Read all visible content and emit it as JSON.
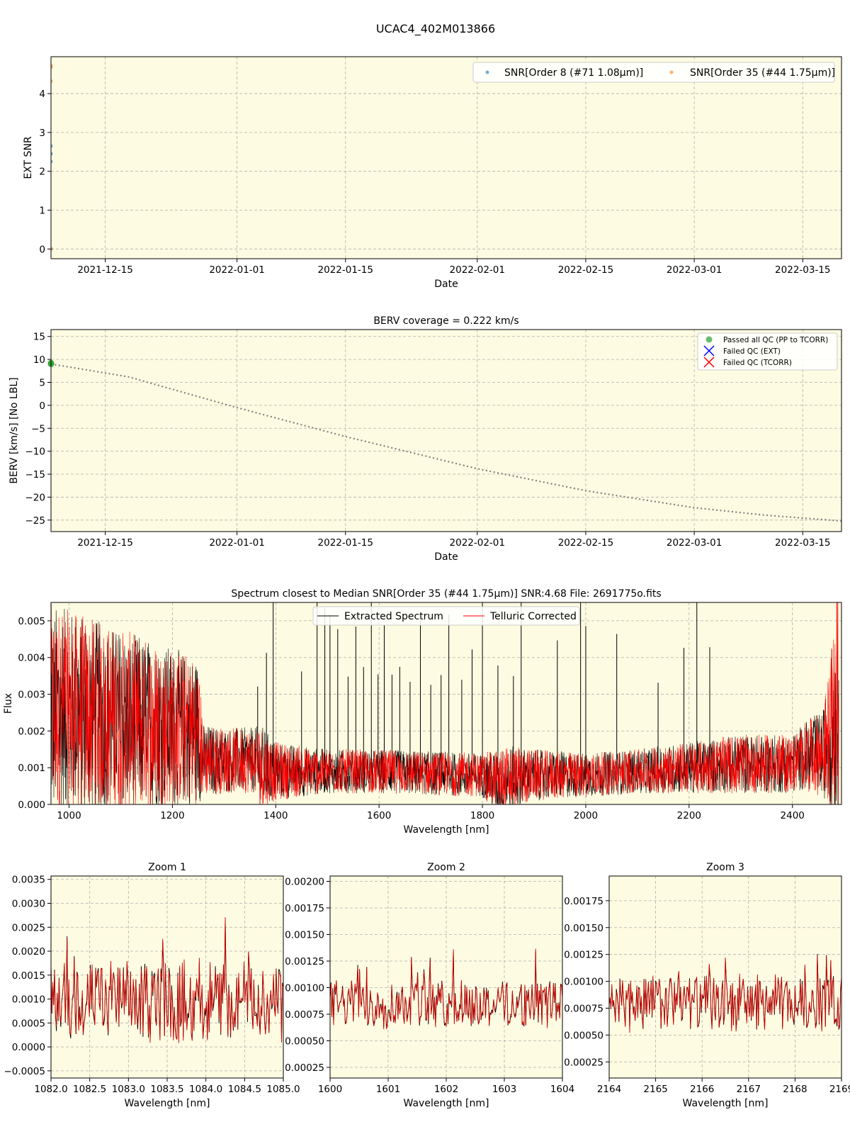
{
  "figure_title": "UCAC4_402M013866",
  "colors": {
    "panel_bg": "#fdfbe1",
    "snr_order8": "#1f77b4",
    "snr_order35": "#ff7f0e",
    "berv_line": "#808080",
    "passed": "#2ca02c",
    "failed_ext": "#0000ff",
    "failed_tcorr": "#ff0000",
    "extracted": "#000000",
    "telluric": "#ff0000",
    "grid": "#b0b0b0"
  },
  "chart_data": [
    {
      "id": "snr",
      "type": "scatter",
      "title": "",
      "xlabel": "Date",
      "ylabel": "EXT SNR",
      "x_is_date": true,
      "xlim": [
        "2021-12-08",
        "2022-03-20"
      ],
      "ylim": [
        -0.25,
        4.95
      ],
      "x_ticks": [
        "2021-12-15",
        "2022-01-01",
        "2022-01-15",
        "2022-02-01",
        "2022-02-15",
        "2022-03-01",
        "2022-03-15"
      ],
      "y_ticks": [
        0,
        1,
        2,
        3,
        4
      ],
      "grid": true,
      "legend": "top-right",
      "series": [
        {
          "name": "SNR[Order 8 (#71 1.08μm)]",
          "color": "#1f77b4",
          "x": [
            "2021-12-08",
            "2021-12-08",
            "2021-12-08",
            "2021-12-08"
          ],
          "y": [
            2.65,
            2.45,
            2.25,
            0.0
          ]
        },
        {
          "name": "SNR[Order 35 (#44 1.75μm)]",
          "color": "#ff7f0e",
          "x": [
            "2021-12-08",
            "2021-12-08",
            "2021-12-08",
            "2021-12-08"
          ],
          "y": [
            4.72,
            4.68,
            4.32,
            0.0
          ]
        }
      ]
    },
    {
      "id": "berv",
      "type": "line",
      "title": "BERV coverage = 0.222 km/s",
      "xlabel": "Date",
      "ylabel": "BERV [km/s]  [No LBL]",
      "x_is_date": true,
      "xlim": [
        "2021-12-08",
        "2022-03-20"
      ],
      "ylim": [
        -27.5,
        16.5
      ],
      "x_ticks": [
        "2021-12-15",
        "2022-01-01",
        "2022-01-15",
        "2022-02-01",
        "2022-02-15",
        "2022-03-01",
        "2022-03-15"
      ],
      "y_ticks": [
        -25,
        -20,
        -15,
        -10,
        -5,
        0,
        5,
        10,
        15
      ],
      "grid": true,
      "legend": "top-right",
      "legend_entries": [
        "Passed all QC (PP to TCORR)",
        "Failed QC (EXT)",
        "Failed QC (TCORR)"
      ],
      "berv_curve": {
        "x": [
          "2021-12-08",
          "2021-12-18",
          "2022-01-01",
          "2022-01-15",
          "2022-02-01",
          "2022-02-15",
          "2022-03-01",
          "2022-03-10",
          "2022-03-20"
        ],
        "y": [
          9.0,
          6.2,
          -0.5,
          -6.8,
          -13.8,
          -18.6,
          -22.3,
          -23.9,
          -25.2
        ]
      },
      "passed_points": {
        "x": [
          "2021-12-08",
          "2021-12-08"
        ],
        "y": [
          9.2,
          9.0
        ]
      }
    },
    {
      "id": "spectrum",
      "type": "line",
      "title": "Spectrum closest to Median SNR[Order 35 (#44 1.75μm)]     SNR:4.68     File: 2691775o.fits",
      "xlabel": "Wavelength [nm]",
      "ylabel": "Flux",
      "xlim": [
        965,
        2495
      ],
      "ylim": [
        0,
        0.0055
      ],
      "x_ticks": [
        1000,
        1200,
        1400,
        1600,
        1800,
        2000,
        2200,
        2400
      ],
      "y_ticks": [
        "0.000",
        "0.001",
        "0.002",
        "0.003",
        "0.004",
        "0.005"
      ],
      "grid": true,
      "legend": "top-center",
      "series": [
        {
          "name": "Extracted Spectrum"
        },
        {
          "name": "Telluric Corrected"
        }
      ],
      "noise_envelope": {
        "x": [
          965,
          1000,
          1100,
          1200,
          1250,
          1260,
          1300,
          1360,
          1370,
          1400,
          1500,
          1600,
          1700,
          1800,
          1830,
          1850,
          1900,
          2000,
          2100,
          2200,
          2300,
          2400,
          2420,
          2460,
          2480,
          2490
        ],
        "center": [
          0.0025,
          0.0025,
          0.0023,
          0.0021,
          0.002,
          0.0012,
          0.0012,
          0.0012,
          0.001,
          0.0009,
          0.0009,
          0.0009,
          0.00085,
          0.0008,
          0.0006,
          0.0007,
          0.0008,
          0.0008,
          0.0009,
          0.001,
          0.0011,
          0.0011,
          0.0013,
          0.0014,
          0.0022,
          0.003
        ],
        "amplitude": [
          0.003,
          0.0028,
          0.0025,
          0.0022,
          0.002,
          0.001,
          0.0009,
          0.0009,
          0.0012,
          0.0008,
          0.0006,
          0.0006,
          0.0006,
          0.0006,
          0.0009,
          0.0009,
          0.0007,
          0.0006,
          0.0006,
          0.0007,
          0.0008,
          0.0008,
          0.0009,
          0.0012,
          0.0025,
          0.0035
        ]
      },
      "emission_spikes": [
        1365,
        1382,
        1395,
        1450,
        1480,
        1495,
        1505,
        1520,
        1540,
        1555,
        1570,
        1585,
        1598,
        1610,
        1625,
        1640,
        1660,
        1680,
        1700,
        1720,
        1735,
        1760,
        1780,
        1800,
        1830,
        1860,
        1875,
        1945,
        1990,
        2000,
        2060,
        2140,
        2190,
        2215,
        2240
      ]
    },
    {
      "id": "zoom1",
      "type": "line",
      "title": "Zoom 1",
      "xlabel": "Wavelength [nm]",
      "ylabel": "",
      "xlim": [
        1082.0,
        1085.0
      ],
      "ylim": [
        -0.00065,
        0.00357
      ],
      "x_ticks": [
        "1082.0",
        "1082.5",
        "1083.0",
        "1083.5",
        "1084.0",
        "1084.5",
        "1085.0"
      ],
      "y_ticks": [
        "−0.0005",
        "0.0000",
        "0.0005",
        "0.0010",
        "0.0015",
        "0.0020",
        "0.0025",
        "0.0030",
        "0.0035"
      ],
      "grid": true,
      "mean": 0.00095,
      "spread": 0.0008
    },
    {
      "id": "zoom2",
      "type": "line",
      "title": "Zoom 2",
      "xlabel": "Wavelength [nm]",
      "ylabel": "",
      "xlim": [
        1600,
        1604
      ],
      "ylim": [
        0.00015,
        0.00205
      ],
      "x_ticks": [
        "1600",
        "1601",
        "1602",
        "1603",
        "1604"
      ],
      "y_ticks": [
        "0.00025",
        "0.00050",
        "0.00075",
        "0.00100",
        "0.00125",
        "0.00150",
        "0.00175",
        "0.00200"
      ],
      "grid": true,
      "mean": 0.00085,
      "spread": 0.00022
    },
    {
      "id": "zoom3",
      "type": "line",
      "title": "Zoom 3",
      "xlabel": "Wavelength [nm]",
      "ylabel": "",
      "xlim": [
        2164,
        2169
      ],
      "ylim": [
        0.0001,
        0.00198
      ],
      "x_ticks": [
        "2164",
        "2165",
        "2166",
        "2167",
        "2168",
        "2169"
      ],
      "y_ticks": [
        "0.00025",
        "0.00050",
        "0.00075",
        "0.00100",
        "0.00125",
        "0.00150",
        "0.00175"
      ],
      "grid": true,
      "mean": 0.0008,
      "spread": 0.00025
    }
  ]
}
